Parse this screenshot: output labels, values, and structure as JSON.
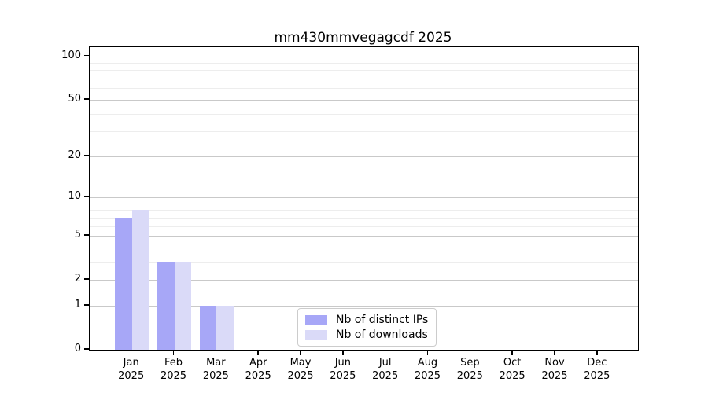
{
  "chart_data": {
    "type": "bar",
    "title": "mm430mmvegagcdf 2025",
    "categories": [
      {
        "month": "Jan",
        "year": "2025"
      },
      {
        "month": "Feb",
        "year": "2025"
      },
      {
        "month": "Mar",
        "year": "2025"
      },
      {
        "month": "Apr",
        "year": "2025"
      },
      {
        "month": "May",
        "year": "2025"
      },
      {
        "month": "Jun",
        "year": "2025"
      },
      {
        "month": "Jul",
        "year": "2025"
      },
      {
        "month": "Aug",
        "year": "2025"
      },
      {
        "month": "Sep",
        "year": "2025"
      },
      {
        "month": "Oct",
        "year": "2025"
      },
      {
        "month": "Nov",
        "year": "2025"
      },
      {
        "month": "Dec",
        "year": "2025"
      }
    ],
    "series": [
      {
        "name": "Nb of distinct IPs",
        "color": "#a7a7f7",
        "values": [
          7,
          3,
          1,
          0,
          0,
          0,
          0,
          0,
          0,
          0,
          0,
          0
        ]
      },
      {
        "name": "Nb of downloads",
        "color": "#dadaf8",
        "values": [
          8,
          3,
          1,
          0,
          0,
          0,
          0,
          0,
          0,
          0,
          0,
          0
        ]
      }
    ],
    "y_axis": {
      "scale": "log1p",
      "major_ticks": [
        0,
        1,
        2,
        5,
        10,
        20,
        50,
        100
      ],
      "minor_ticks": [
        3,
        4,
        6,
        7,
        8,
        9,
        30,
        40,
        60,
        70,
        80,
        90
      ],
      "ylim": [
        0,
        115
      ]
    },
    "grid": "horizontal",
    "legend_position": "bottom-center"
  }
}
